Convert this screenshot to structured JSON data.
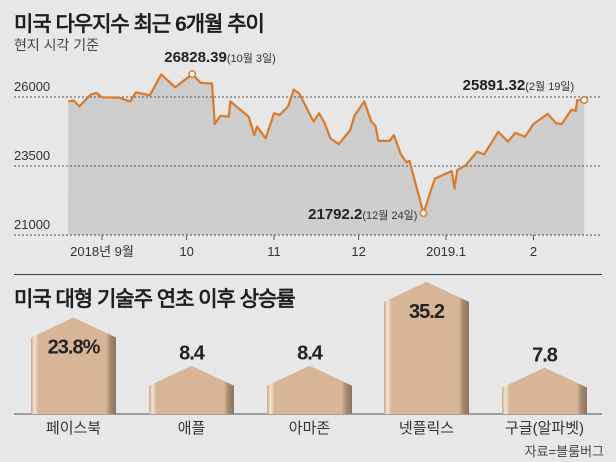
{
  "chart_data": [
    {
      "type": "line",
      "title": "미국 다우지수 최근 6개월 추이",
      "subtitle": "현지 시각 기준",
      "x_unit": "days since 2018-09-01",
      "ylim": [
        21000,
        26000
      ],
      "yticks": [
        {
          "value": 26000,
          "label": "26000"
        },
        {
          "value": 23500,
          "label": "23500"
        },
        {
          "value": 21000,
          "label": "21000"
        }
      ],
      "xticks": [
        {
          "day": 0,
          "label": "2018년 9월"
        },
        {
          "day": 30,
          "label": "10"
        },
        {
          "day": 61,
          "label": "11"
        },
        {
          "day": 91,
          "label": "12"
        },
        {
          "day": 122,
          "label": "2019.1"
        },
        {
          "day": 153,
          "label": "2"
        }
      ],
      "grid": true,
      "color": "#d97a2c",
      "fill": "#cdcdcd",
      "points": [
        [
          -12,
          25840
        ],
        [
          -10,
          25870
        ],
        [
          -8,
          25660
        ],
        [
          -4,
          26090
        ],
        [
          -2,
          26150
        ],
        [
          0,
          25990
        ],
        [
          6,
          25980
        ],
        [
          10,
          25840
        ],
        [
          12,
          26170
        ],
        [
          17,
          26060
        ],
        [
          21,
          26820
        ],
        [
          26,
          26350
        ],
        [
          32,
          26828.39
        ],
        [
          35,
          26510
        ],
        [
          39,
          26490
        ],
        [
          40,
          25020
        ],
        [
          42,
          25320
        ],
        [
          45,
          25290
        ],
        [
          45.5,
          25840
        ],
        [
          52,
          25290
        ],
        [
          54,
          24620
        ],
        [
          55,
          24930
        ],
        [
          58,
          24500
        ],
        [
          61,
          25410
        ],
        [
          63,
          25350
        ],
        [
          66,
          25660
        ],
        [
          68,
          26270
        ],
        [
          70,
          26120
        ],
        [
          75,
          25110
        ],
        [
          77,
          25410
        ],
        [
          79,
          25050
        ],
        [
          81,
          24500
        ],
        [
          84,
          24290
        ],
        [
          88,
          24800
        ],
        [
          89.5,
          25320
        ],
        [
          93,
          25840
        ],
        [
          95.5,
          25110
        ],
        [
          97,
          24950
        ],
        [
          98,
          24410
        ],
        [
          102,
          24410
        ],
        [
          103.5,
          24620
        ],
        [
          106,
          23920
        ],
        [
          108,
          23630
        ],
        [
          109,
          23690
        ],
        [
          114,
          21792.2
        ],
        [
          118,
          23040
        ],
        [
          124,
          23320
        ],
        [
          125,
          22680
        ],
        [
          126,
          23350
        ],
        [
          129,
          23530
        ],
        [
          133,
          24020
        ],
        [
          135.5,
          23920
        ],
        [
          140.5,
          24740
        ],
        [
          144,
          24380
        ],
        [
          146.5,
          24700
        ],
        [
          150,
          24560
        ],
        [
          153,
          25020
        ],
        [
          158,
          25390
        ],
        [
          161,
          25050
        ],
        [
          163,
          25020
        ],
        [
          166.5,
          25540
        ],
        [
          168,
          25500
        ],
        [
          168.5,
          25880
        ],
        [
          171,
          25891.32
        ]
      ],
      "annotations": [
        {
          "day": 32,
          "value": 26828.39,
          "value_label": "26828.39",
          "date_label": "(10월 3일)"
        },
        {
          "day": 114,
          "value": 21792.2,
          "value_label": "21792.2",
          "date_label": "(12월 24일)"
        },
        {
          "day": 171,
          "value": 25891.32,
          "value_label": "25891.32",
          "date_label": "(2월 19일)"
        }
      ]
    },
    {
      "type": "bar",
      "title": "미국 대형 기술주 연초 이후 상승률",
      "unit": "%",
      "categories": [
        "페이스북",
        "애플",
        "아마존",
        "넷플릭스",
        "구글(알파벳)"
      ],
      "values": [
        23.8,
        8.4,
        8.4,
        35.2,
        7.8
      ],
      "value_labels": [
        "23.8%",
        "8.4",
        "8.4",
        "35.2",
        "7.8"
      ],
      "color": "#d8b596"
    }
  ],
  "source": "자료=블룸버그"
}
